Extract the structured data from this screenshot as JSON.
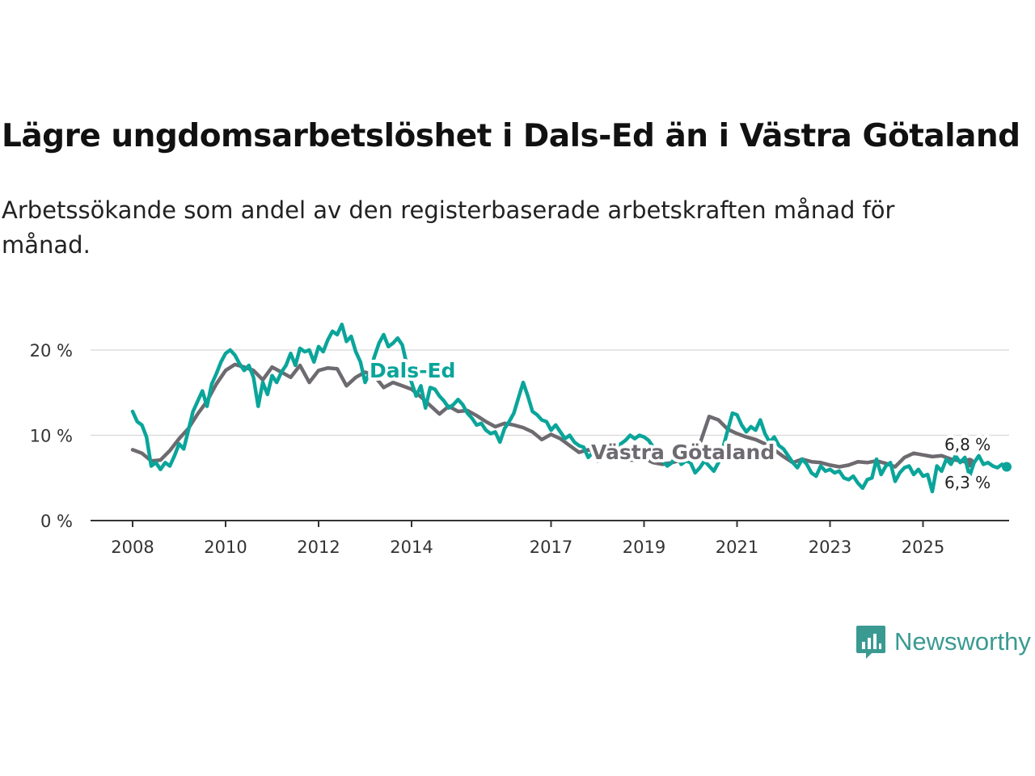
{
  "title": "Lägre ungdomsarbetslöshet i Dals-Ed än i Västra Götaland",
  "subtitle": "Arbetssökande som andel av den registerbaserade arbetskraften månad för månad.",
  "brand": {
    "name": "Newsworthy",
    "icon": "newsworthy-logo-icon"
  },
  "colors": {
    "dalsed": "#0aa59a",
    "vg": "#6d6a70",
    "grid": "#dddddd",
    "axis": "#333333"
  },
  "chart_data": {
    "type": "line",
    "title": "Lägre ungdomsarbetslöshet i Dals-Ed än i Västra Götaland",
    "xlabel": "",
    "ylabel": "",
    "ylim": [
      0,
      20
    ],
    "xlim": [
      2007.7,
      2026.6
    ],
    "y_ticks": [
      {
        "v": 0,
        "label": "0 %"
      },
      {
        "v": 10,
        "label": "10 %"
      },
      {
        "v": 20,
        "label": "20 %"
      }
    ],
    "x_ticks": [
      {
        "v": 2008,
        "label": "2008"
      },
      {
        "v": 2010,
        "label": "2010"
      },
      {
        "v": 2012,
        "label": "2012"
      },
      {
        "v": 2014,
        "label": "2014"
      },
      {
        "v": 2017,
        "label": "2017"
      },
      {
        "v": 2019,
        "label": "2019"
      },
      {
        "v": 2021,
        "label": "2021"
      },
      {
        "v": 2023,
        "label": "2023"
      },
      {
        "v": 2025,
        "label": "2025"
      }
    ],
    "series": [
      {
        "name": "Västra Götaland",
        "label": "Västra Götaland",
        "end_label": "6,8 %",
        "points": [
          [
            2008.0,
            8.3
          ],
          [
            2008.2,
            7.9
          ],
          [
            2008.4,
            7.0
          ],
          [
            2008.6,
            7.1
          ],
          [
            2008.8,
            8.2
          ],
          [
            2009.0,
            9.6
          ],
          [
            2009.2,
            10.8
          ],
          [
            2009.4,
            12.5
          ],
          [
            2009.6,
            14.0
          ],
          [
            2009.8,
            16.0
          ],
          [
            2010.0,
            17.6
          ],
          [
            2010.2,
            18.3
          ],
          [
            2010.4,
            18.0
          ],
          [
            2010.6,
            17.6
          ],
          [
            2010.8,
            16.5
          ],
          [
            2011.0,
            18.0
          ],
          [
            2011.2,
            17.4
          ],
          [
            2011.4,
            16.8
          ],
          [
            2011.6,
            18.2
          ],
          [
            2011.8,
            16.2
          ],
          [
            2012.0,
            17.6
          ],
          [
            2012.2,
            17.9
          ],
          [
            2012.4,
            17.8
          ],
          [
            2012.6,
            15.8
          ],
          [
            2012.8,
            16.8
          ],
          [
            2013.0,
            17.4
          ],
          [
            2013.2,
            17.0
          ],
          [
            2013.4,
            15.6
          ],
          [
            2013.6,
            16.2
          ],
          [
            2013.8,
            15.8
          ],
          [
            2014.0,
            15.4
          ],
          [
            2014.2,
            14.5
          ],
          [
            2014.4,
            13.5
          ],
          [
            2014.6,
            12.5
          ],
          [
            2014.8,
            13.4
          ],
          [
            2015.0,
            12.8
          ],
          [
            2015.2,
            12.9
          ],
          [
            2015.4,
            12.3
          ],
          [
            2015.6,
            11.6
          ],
          [
            2015.8,
            11.0
          ],
          [
            2016.0,
            11.4
          ],
          [
            2016.2,
            11.2
          ],
          [
            2016.4,
            10.9
          ],
          [
            2016.6,
            10.4
          ],
          [
            2016.8,
            9.5
          ],
          [
            2017.0,
            10.1
          ],
          [
            2017.2,
            9.6
          ],
          [
            2017.4,
            8.8
          ],
          [
            2017.6,
            8.0
          ],
          [
            2017.8,
            8.3
          ],
          [
            2018.0,
            8.0
          ],
          [
            2018.2,
            7.8
          ],
          [
            2018.4,
            7.4
          ],
          [
            2018.6,
            7.1
          ],
          [
            2018.8,
            7.1
          ],
          [
            2019.0,
            7.3
          ],
          [
            2019.2,
            6.8
          ],
          [
            2019.4,
            6.6
          ],
          [
            2019.6,
            6.8
          ],
          [
            2019.8,
            7.1
          ],
          [
            2020.0,
            7.5
          ],
          [
            2020.2,
            9.0
          ],
          [
            2020.4,
            12.2
          ],
          [
            2020.6,
            11.8
          ],
          [
            2020.8,
            10.7
          ],
          [
            2021.0,
            10.2
          ],
          [
            2021.2,
            9.8
          ],
          [
            2021.4,
            9.5
          ],
          [
            2021.6,
            9.0
          ],
          [
            2021.8,
            8.3
          ],
          [
            2022.0,
            7.5
          ],
          [
            2022.2,
            6.8
          ],
          [
            2022.4,
            7.2
          ],
          [
            2022.6,
            6.9
          ],
          [
            2022.8,
            6.8
          ],
          [
            2023.0,
            6.5
          ],
          [
            2023.2,
            6.3
          ],
          [
            2023.4,
            6.5
          ],
          [
            2023.6,
            6.9
          ],
          [
            2023.8,
            6.8
          ],
          [
            2024.0,
            7.0
          ],
          [
            2024.2,
            6.7
          ],
          [
            2024.4,
            6.3
          ],
          [
            2024.6,
            7.4
          ],
          [
            2024.8,
            7.9
          ],
          [
            2025.0,
            7.7
          ],
          [
            2025.2,
            7.5
          ],
          [
            2025.4,
            7.6
          ],
          [
            2025.6,
            7.2
          ],
          [
            2025.8,
            7.0
          ],
          [
            2026.0,
            6.8
          ]
        ]
      },
      {
        "name": "Dals-Ed",
        "label": "Dals-Ed",
        "end_label": "6,3 %",
        "points": [
          [
            2008.0,
            12.8
          ],
          [
            2008.1,
            11.6
          ],
          [
            2008.2,
            11.2
          ],
          [
            2008.3,
            9.8
          ],
          [
            2008.4,
            6.4
          ],
          [
            2008.5,
            6.8
          ],
          [
            2008.6,
            6.0
          ],
          [
            2008.7,
            6.8
          ],
          [
            2008.8,
            6.4
          ],
          [
            2008.9,
            7.6
          ],
          [
            2009.0,
            9.0
          ],
          [
            2009.1,
            8.4
          ],
          [
            2009.2,
            10.6
          ],
          [
            2009.3,
            12.8
          ],
          [
            2009.4,
            14.0
          ],
          [
            2009.5,
            15.2
          ],
          [
            2009.6,
            13.4
          ],
          [
            2009.7,
            16.0
          ],
          [
            2009.8,
            17.2
          ],
          [
            2009.9,
            18.6
          ],
          [
            2010.0,
            19.6
          ],
          [
            2010.1,
            20.0
          ],
          [
            2010.2,
            19.4
          ],
          [
            2010.3,
            18.4
          ],
          [
            2010.4,
            17.6
          ],
          [
            2010.5,
            18.2
          ],
          [
            2010.6,
            16.8
          ],
          [
            2010.7,
            13.4
          ],
          [
            2010.8,
            16.2
          ],
          [
            2010.9,
            14.8
          ],
          [
            2011.0,
            17.0
          ],
          [
            2011.1,
            16.2
          ],
          [
            2011.2,
            17.4
          ],
          [
            2011.3,
            18.2
          ],
          [
            2011.4,
            19.6
          ],
          [
            2011.5,
            18.2
          ],
          [
            2011.6,
            20.2
          ],
          [
            2011.7,
            19.8
          ],
          [
            2011.8,
            20.0
          ],
          [
            2011.9,
            18.6
          ],
          [
            2012.0,
            20.4
          ],
          [
            2012.1,
            19.8
          ],
          [
            2012.2,
            21.2
          ],
          [
            2012.3,
            22.2
          ],
          [
            2012.4,
            21.8
          ],
          [
            2012.5,
            23.0
          ],
          [
            2012.6,
            21.0
          ],
          [
            2012.7,
            21.6
          ],
          [
            2012.8,
            19.8
          ],
          [
            2012.9,
            18.6
          ],
          [
            2013.0,
            16.2
          ],
          [
            2013.1,
            17.4
          ],
          [
            2013.2,
            19.2
          ],
          [
            2013.3,
            20.8
          ],
          [
            2013.4,
            21.8
          ],
          [
            2013.5,
            20.4
          ],
          [
            2013.6,
            20.8
          ],
          [
            2013.7,
            21.4
          ],
          [
            2013.8,
            20.6
          ],
          [
            2013.9,
            18.2
          ],
          [
            2014.0,
            16.2
          ],
          [
            2014.1,
            14.6
          ],
          [
            2014.2,
            15.8
          ],
          [
            2014.3,
            13.2
          ],
          [
            2014.4,
            15.6
          ],
          [
            2014.5,
            15.4
          ],
          [
            2014.6,
            14.6
          ],
          [
            2014.7,
            14.0
          ],
          [
            2014.8,
            13.2
          ],
          [
            2014.9,
            13.6
          ],
          [
            2015.0,
            14.2
          ],
          [
            2015.1,
            13.6
          ],
          [
            2015.2,
            12.6
          ],
          [
            2015.3,
            12.0
          ],
          [
            2015.4,
            11.2
          ],
          [
            2015.5,
            11.4
          ],
          [
            2015.6,
            10.6
          ],
          [
            2015.7,
            10.2
          ],
          [
            2015.8,
            10.4
          ],
          [
            2015.9,
            9.2
          ],
          [
            2016.0,
            10.8
          ],
          [
            2016.1,
            11.6
          ],
          [
            2016.2,
            12.6
          ],
          [
            2016.3,
            14.4
          ],
          [
            2016.4,
            16.2
          ],
          [
            2016.5,
            14.6
          ],
          [
            2016.6,
            12.8
          ],
          [
            2016.7,
            12.4
          ],
          [
            2016.8,
            11.8
          ],
          [
            2016.9,
            11.6
          ],
          [
            2017.0,
            10.6
          ],
          [
            2017.1,
            11.2
          ],
          [
            2017.2,
            10.4
          ],
          [
            2017.3,
            9.6
          ],
          [
            2017.4,
            10.0
          ],
          [
            2017.5,
            9.2
          ],
          [
            2017.6,
            8.8
          ],
          [
            2017.7,
            8.6
          ],
          [
            2017.8,
            7.4
          ],
          [
            2017.9,
            8.0
          ],
          [
            2018.0,
            7.0
          ],
          [
            2018.1,
            8.6
          ],
          [
            2018.2,
            7.4
          ],
          [
            2018.3,
            8.0
          ],
          [
            2018.4,
            8.6
          ],
          [
            2018.5,
            9.0
          ],
          [
            2018.6,
            9.4
          ],
          [
            2018.7,
            10.0
          ],
          [
            2018.8,
            9.6
          ],
          [
            2018.9,
            10.0
          ],
          [
            2019.0,
            9.8
          ],
          [
            2019.1,
            9.4
          ],
          [
            2019.2,
            8.6
          ],
          [
            2019.3,
            7.4
          ],
          [
            2019.4,
            7.0
          ],
          [
            2019.5,
            6.4
          ],
          [
            2019.6,
            6.8
          ],
          [
            2019.7,
            7.8
          ],
          [
            2019.8,
            6.6
          ],
          [
            2019.9,
            7.0
          ],
          [
            2020.0,
            6.8
          ],
          [
            2020.1,
            5.6
          ],
          [
            2020.2,
            6.2
          ],
          [
            2020.3,
            7.0
          ],
          [
            2020.4,
            6.4
          ],
          [
            2020.5,
            5.8
          ],
          [
            2020.6,
            6.8
          ],
          [
            2020.7,
            8.6
          ],
          [
            2020.8,
            10.6
          ],
          [
            2020.9,
            12.6
          ],
          [
            2021.0,
            12.4
          ],
          [
            2021.1,
            11.2
          ],
          [
            2021.2,
            10.4
          ],
          [
            2021.3,
            11.0
          ],
          [
            2021.4,
            10.6
          ],
          [
            2021.5,
            11.8
          ],
          [
            2021.6,
            10.2
          ],
          [
            2021.7,
            9.2
          ],
          [
            2021.8,
            9.8
          ],
          [
            2021.9,
            8.8
          ],
          [
            2022.0,
            8.4
          ],
          [
            2022.1,
            7.6
          ],
          [
            2022.2,
            6.8
          ],
          [
            2022.3,
            6.2
          ],
          [
            2022.4,
            7.2
          ],
          [
            2022.5,
            6.6
          ],
          [
            2022.6,
            5.6
          ],
          [
            2022.7,
            5.2
          ],
          [
            2022.8,
            6.4
          ],
          [
            2022.9,
            5.8
          ],
          [
            2023.0,
            6.0
          ],
          [
            2023.1,
            5.6
          ],
          [
            2023.2,
            5.8
          ],
          [
            2023.3,
            5.0
          ],
          [
            2023.4,
            4.8
          ],
          [
            2023.5,
            5.2
          ],
          [
            2023.6,
            4.4
          ],
          [
            2023.7,
            3.8
          ],
          [
            2023.8,
            4.8
          ],
          [
            2023.9,
            5.0
          ],
          [
            2024.0,
            7.2
          ],
          [
            2024.1,
            5.4
          ],
          [
            2024.2,
            6.4
          ],
          [
            2024.3,
            6.8
          ],
          [
            2024.4,
            4.6
          ],
          [
            2024.5,
            5.6
          ],
          [
            2024.6,
            6.2
          ],
          [
            2024.7,
            6.4
          ],
          [
            2024.8,
            5.4
          ],
          [
            2024.9,
            6.0
          ],
          [
            2025.0,
            5.2
          ],
          [
            2025.1,
            5.4
          ],
          [
            2025.2,
            3.4
          ],
          [
            2025.3,
            6.4
          ],
          [
            2025.4,
            5.8
          ],
          [
            2025.5,
            7.2
          ],
          [
            2025.6,
            6.6
          ],
          [
            2025.7,
            7.6
          ],
          [
            2025.8,
            6.8
          ],
          [
            2025.9,
            7.4
          ],
          [
            2026.0,
            5.2
          ],
          [
            2026.1,
            6.8
          ],
          [
            2026.2,
            7.6
          ],
          [
            2026.3,
            6.6
          ],
          [
            2026.4,
            6.8
          ],
          [
            2026.5,
            6.4
          ],
          [
            2026.6,
            6.2
          ],
          [
            2026.7,
            6.6
          ],
          [
            2026.8,
            6.3
          ]
        ]
      }
    ]
  }
}
